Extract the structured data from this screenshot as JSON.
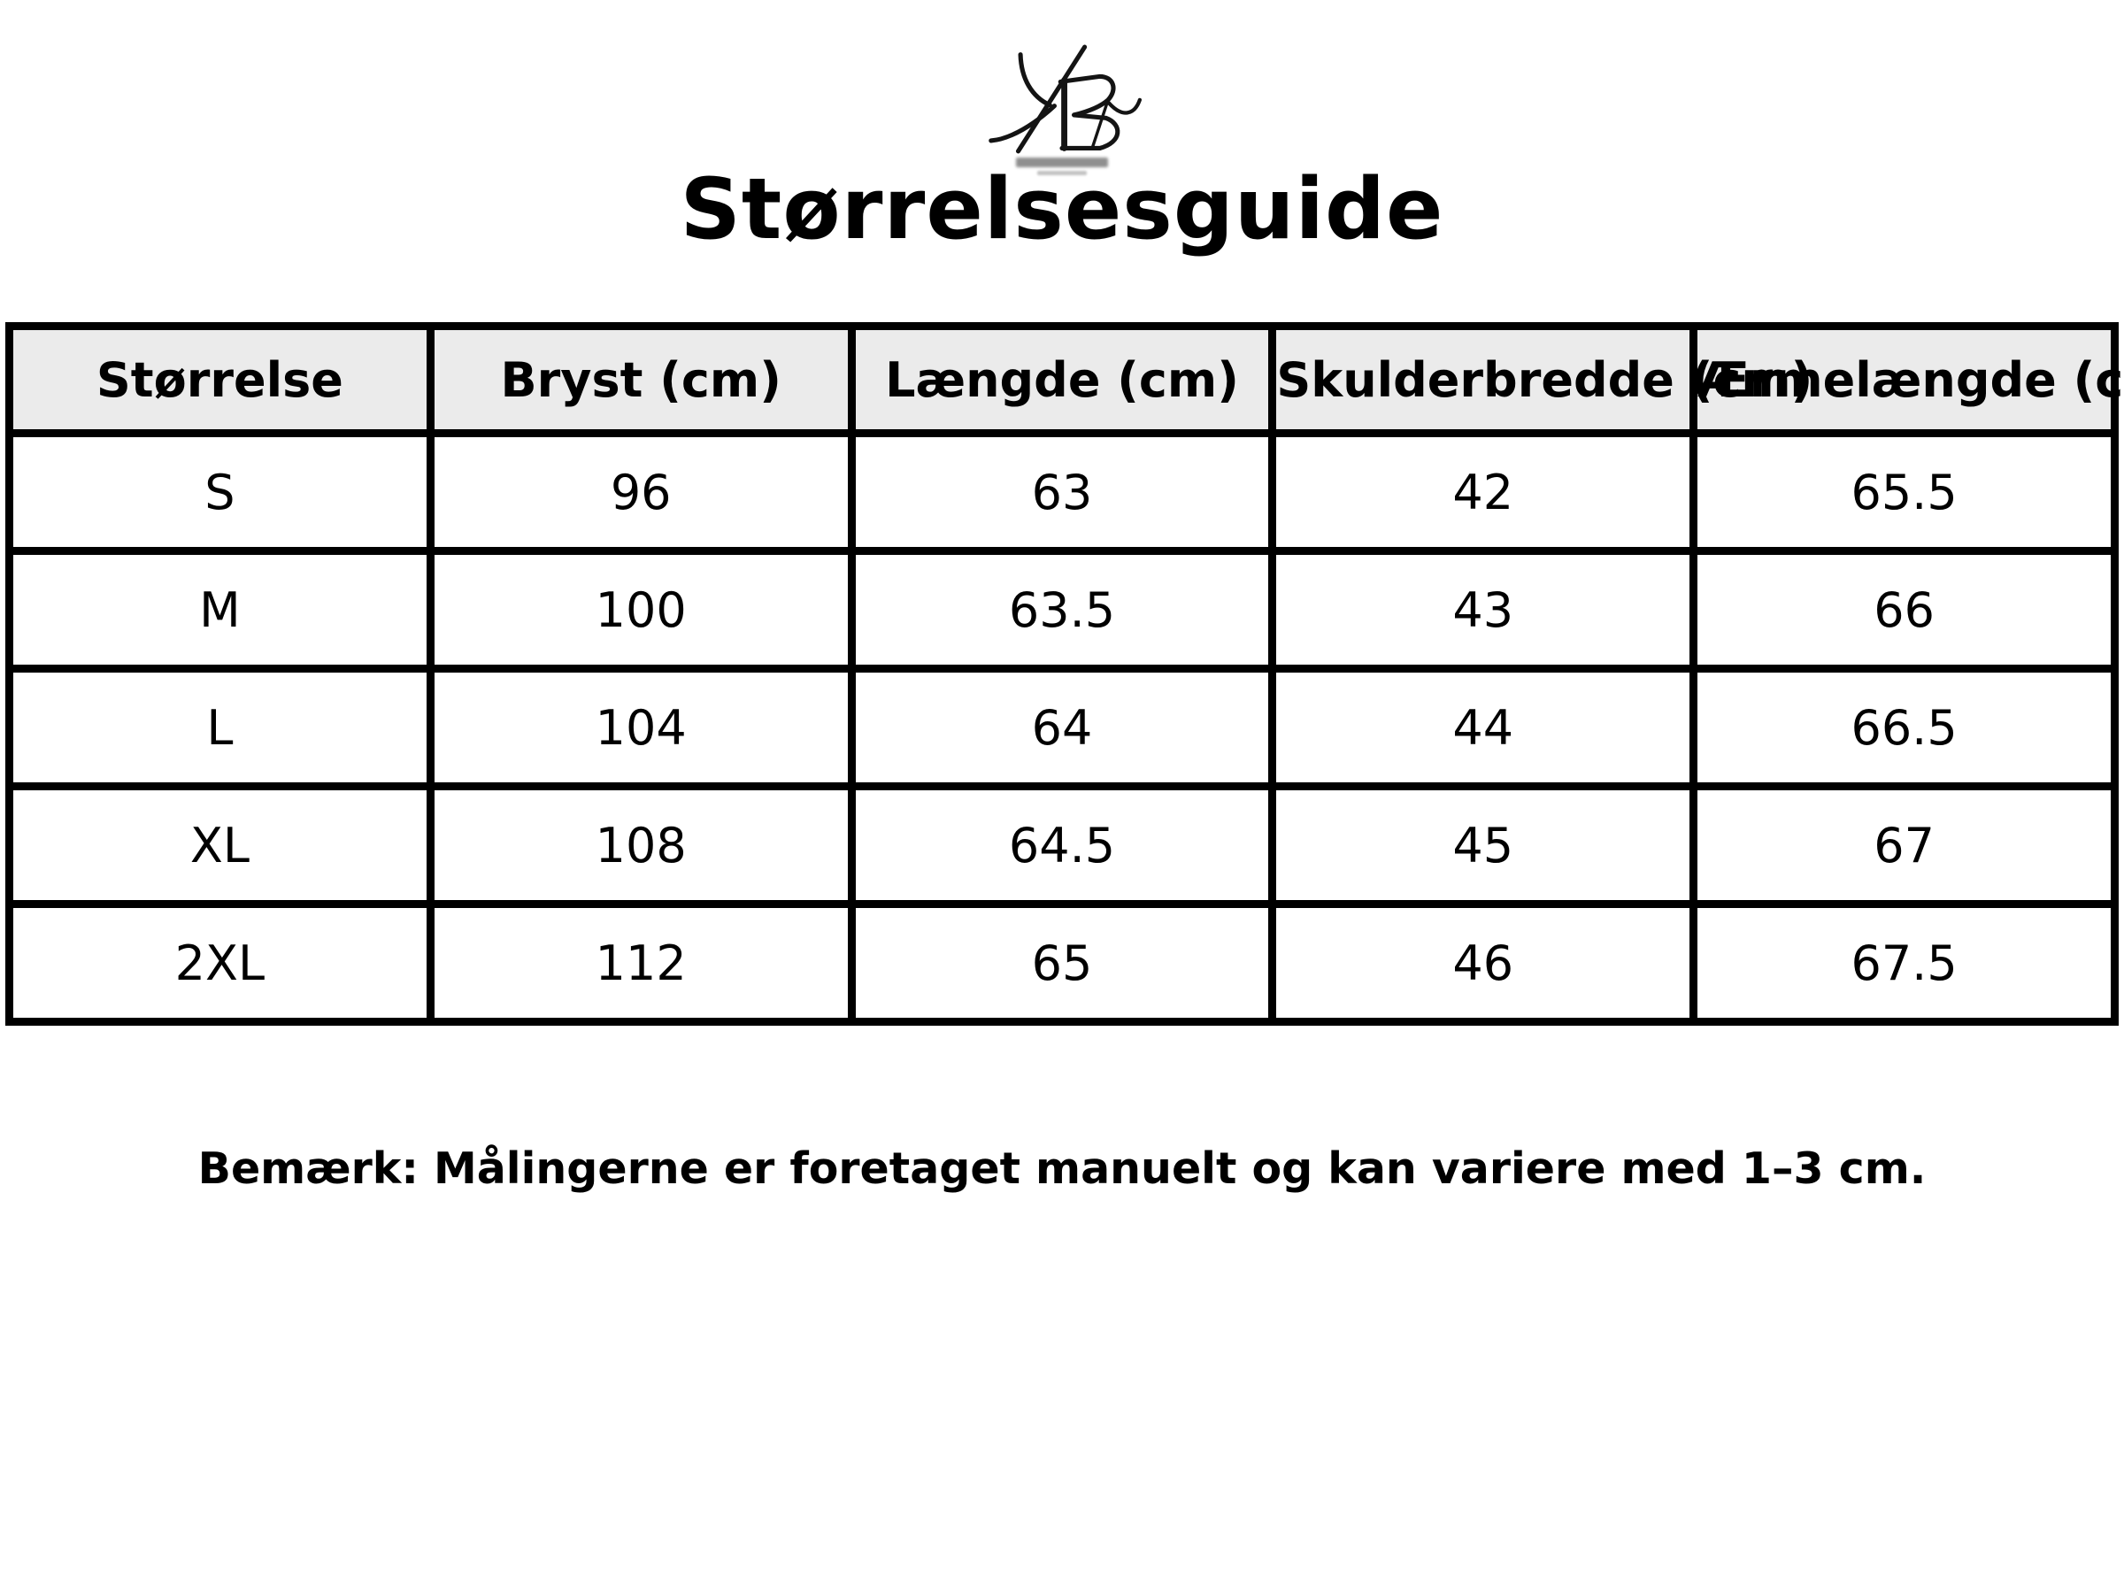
{
  "title": "Størrelsesguide",
  "logo": {
    "icon": "kb-monogram-icon",
    "stroke_color": "#141414"
  },
  "table": {
    "headers": [
      "Størrelse",
      "Bryst (cm)",
      "Længde (cm)",
      "Skulderbredde (cm)",
      "Ærmelængde (cm)"
    ],
    "rows": [
      [
        "S",
        "96",
        "63",
        "42",
        "65.5"
      ],
      [
        "M",
        "100",
        "63.5",
        "43",
        "66"
      ],
      [
        "L",
        "104",
        "64",
        "44",
        "66.5"
      ],
      [
        "XL",
        "108",
        "64.5",
        "45",
        "67"
      ],
      [
        "2XL",
        "112",
        "65",
        "46",
        "67.5"
      ]
    ]
  },
  "note": "Bemærk: Målingerne er foretaget manuelt og kan variere med 1–3 cm.",
  "colors": {
    "background": "#ffffff",
    "header_background": "#ebebeb",
    "border": "#000000",
    "text": "#000000"
  },
  "chart_data": {
    "type": "table",
    "title": "Størrelsesguide",
    "columns": [
      "Størrelse",
      "Bryst (cm)",
      "Længde (cm)",
      "Skulderbredde (cm)",
      "Ærmelængde (cm)"
    ],
    "rows": [
      [
        "S",
        96,
        63,
        42,
        65.5
      ],
      [
        "M",
        100,
        63.5,
        43,
        66
      ],
      [
        "L",
        104,
        64,
        44,
        66.5
      ],
      [
        "XL",
        108,
        64.5,
        45,
        67
      ],
      [
        "2XL",
        112,
        65,
        46,
        67.5
      ]
    ],
    "note": "Bemærk: Målingerne er foretaget manuelt og kan variere med 1–3 cm."
  }
}
